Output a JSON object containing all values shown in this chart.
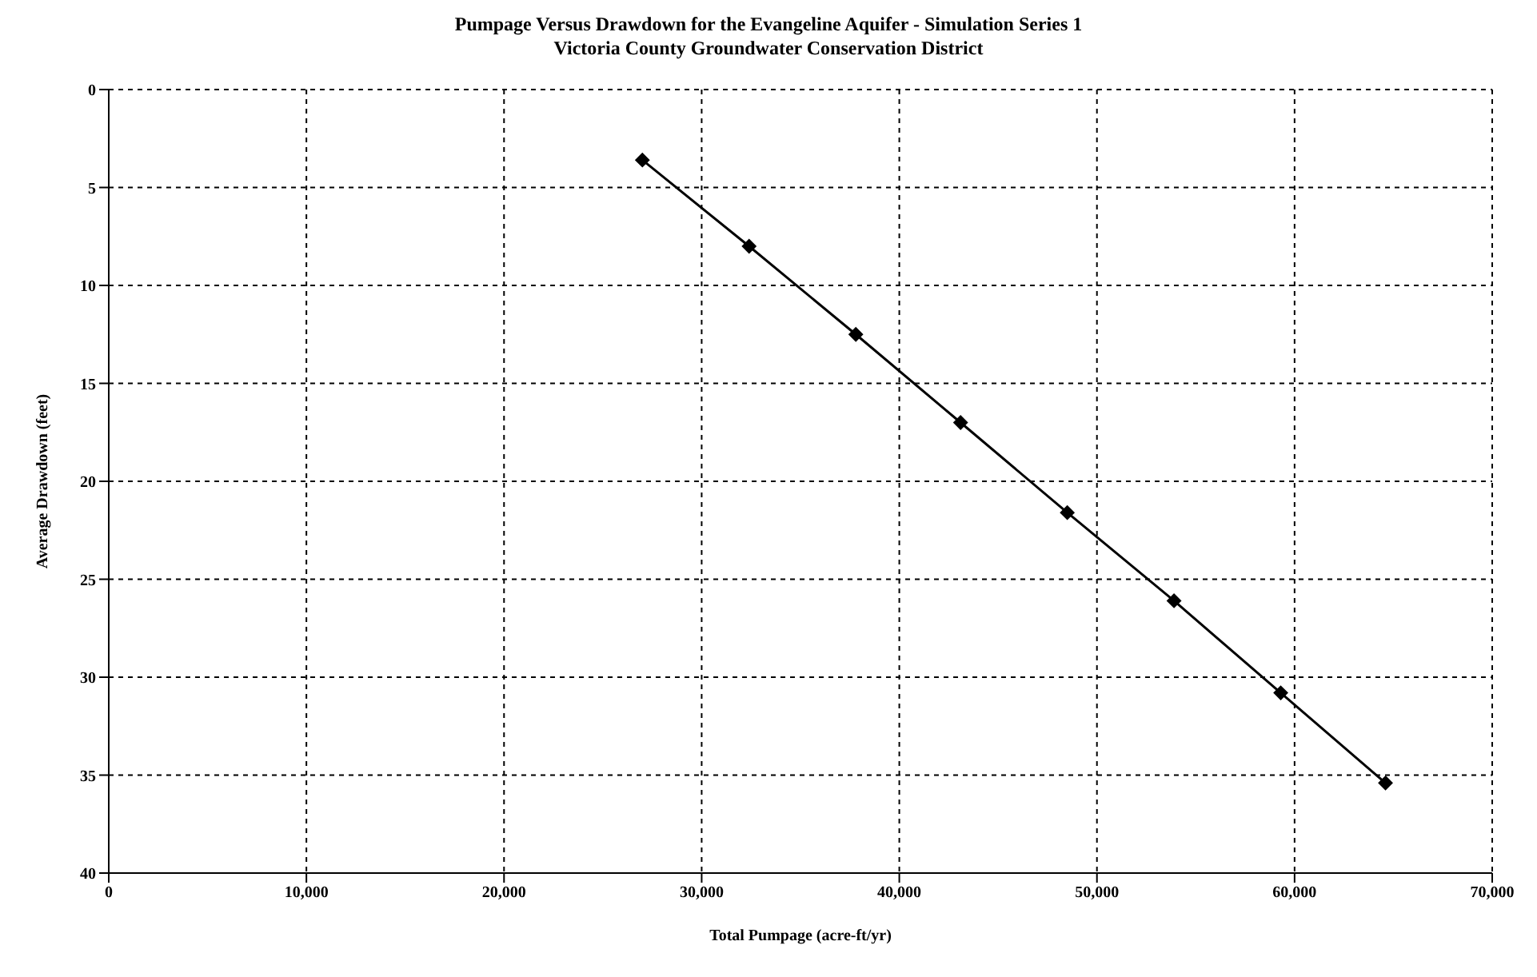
{
  "chart_data": {
    "type": "line",
    "title": "Pumpage Versus Drawdown for the Evangeline Aquifer - Simulation Series 1",
    "subtitle": "Victoria County Groundwater Conservation District",
    "xlabel": "Total Pumpage (acre-ft/yr)",
    "ylabel": "Average Drawdown (feet)",
    "x": [
      27000,
      32400,
      37800,
      43100,
      48500,
      53900,
      59300,
      64600
    ],
    "series": [
      {
        "color": "#000000",
        "values": [
          3.6,
          8.0,
          12.5,
          17.0,
          21.6,
          26.1,
          30.8,
          35.4
        ]
      }
    ],
    "xlim": [
      0,
      70000
    ],
    "xticks": [
      {
        "value": 0,
        "label": "0"
      },
      {
        "value": 10000,
        "label": "10,000"
      },
      {
        "value": 20000,
        "label": "20,000"
      },
      {
        "value": 30000,
        "label": "30,000"
      },
      {
        "value": 40000,
        "label": "40,000"
      },
      {
        "value": 50000,
        "label": "50,000"
      },
      {
        "value": 60000,
        "label": "60,000"
      },
      {
        "value": 70000,
        "label": "70,000"
      }
    ],
    "ylim": [
      40,
      0
    ],
    "yticks": [
      0,
      5,
      10,
      15,
      20,
      25,
      30,
      35,
      40
    ],
    "grid": true,
    "marker": "diamond",
    "line_style": "solid"
  }
}
